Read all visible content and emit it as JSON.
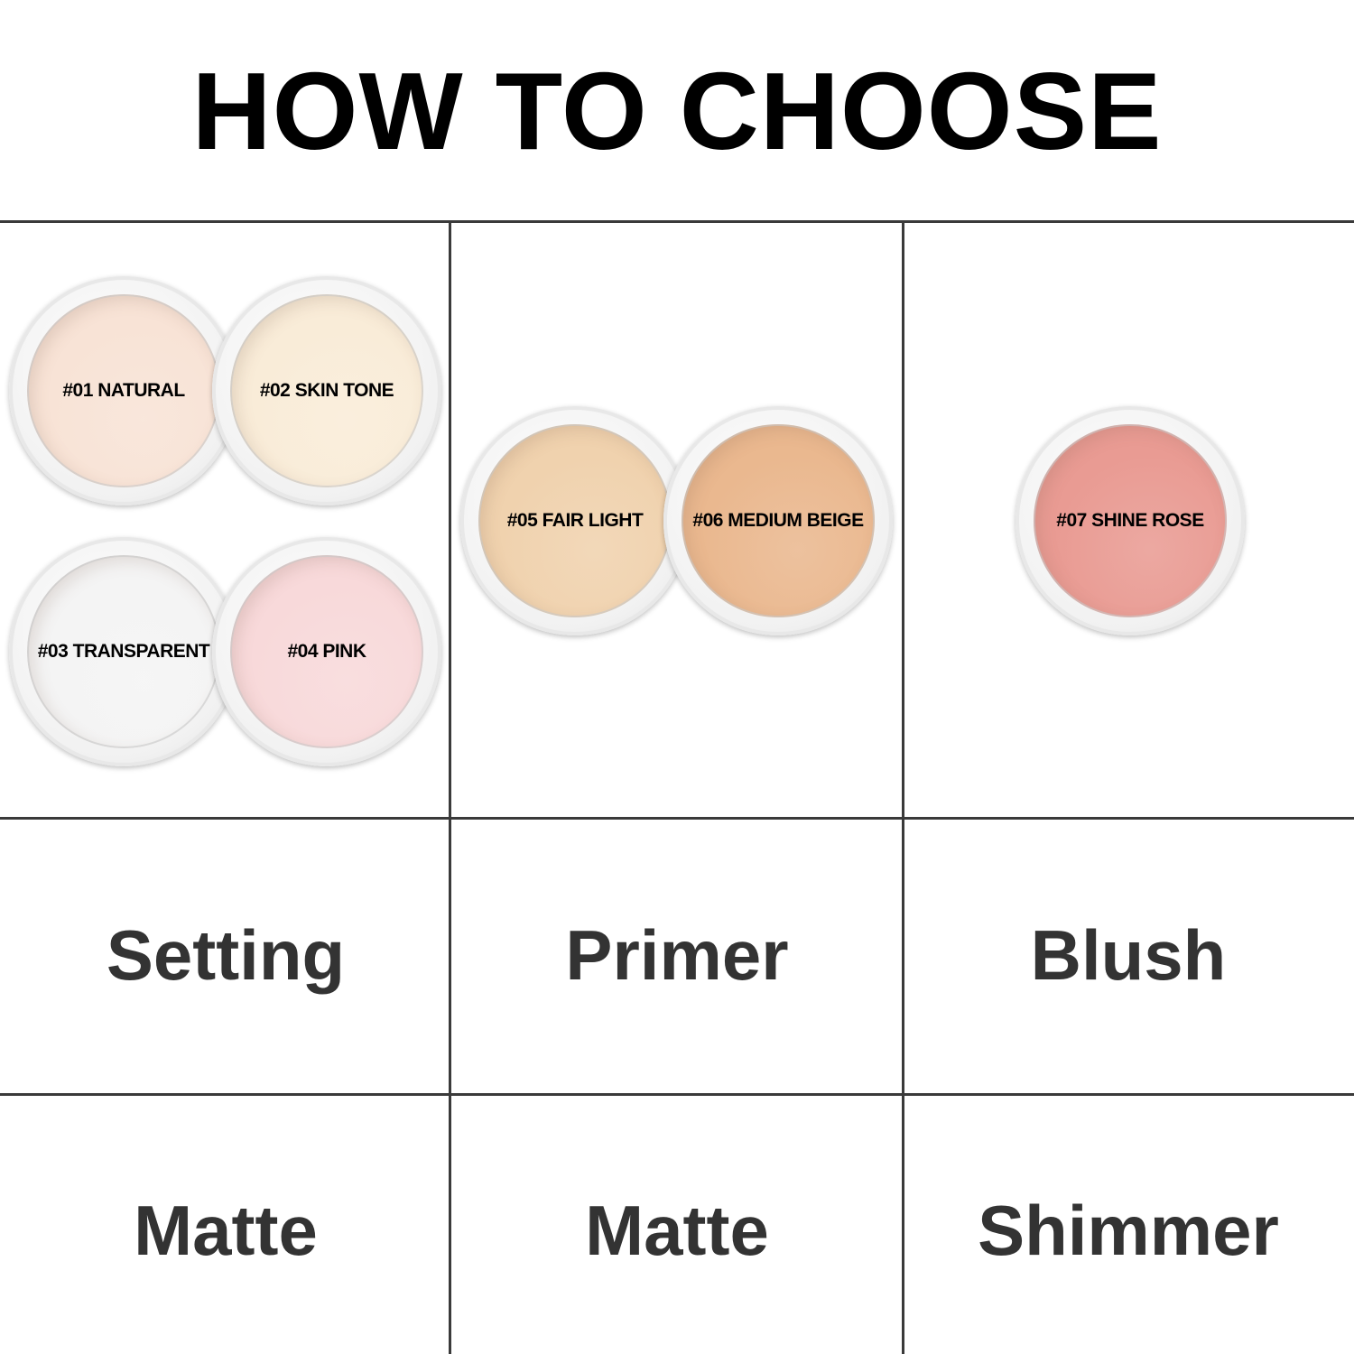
{
  "title": "HOW TO CHOOSE",
  "shades": [
    {
      "label": "#01 NATURAL",
      "color": "#f8e3d6"
    },
    {
      "label": "#02 SKIN TONE",
      "color": "#f9ecd8"
    },
    {
      "label": "#03 TRANSPARENT",
      "color": "#f4f4f4"
    },
    {
      "label": "#04 PINK",
      "color": "#f8d9da"
    },
    {
      "label": "#05 FAIR LIGHT",
      "color": "#f0d2ae"
    },
    {
      "label": "#06 MEDIUM BEIGE",
      "color": "#eab88f"
    },
    {
      "label": "#07 SHINE ROSE",
      "color": "#e99b93"
    }
  ],
  "uses": [
    "Setting",
    "Primer",
    "Blush"
  ],
  "finishes": [
    "Matte",
    "Matte",
    "Shimmer"
  ],
  "grid_color": "#3a3a3a"
}
